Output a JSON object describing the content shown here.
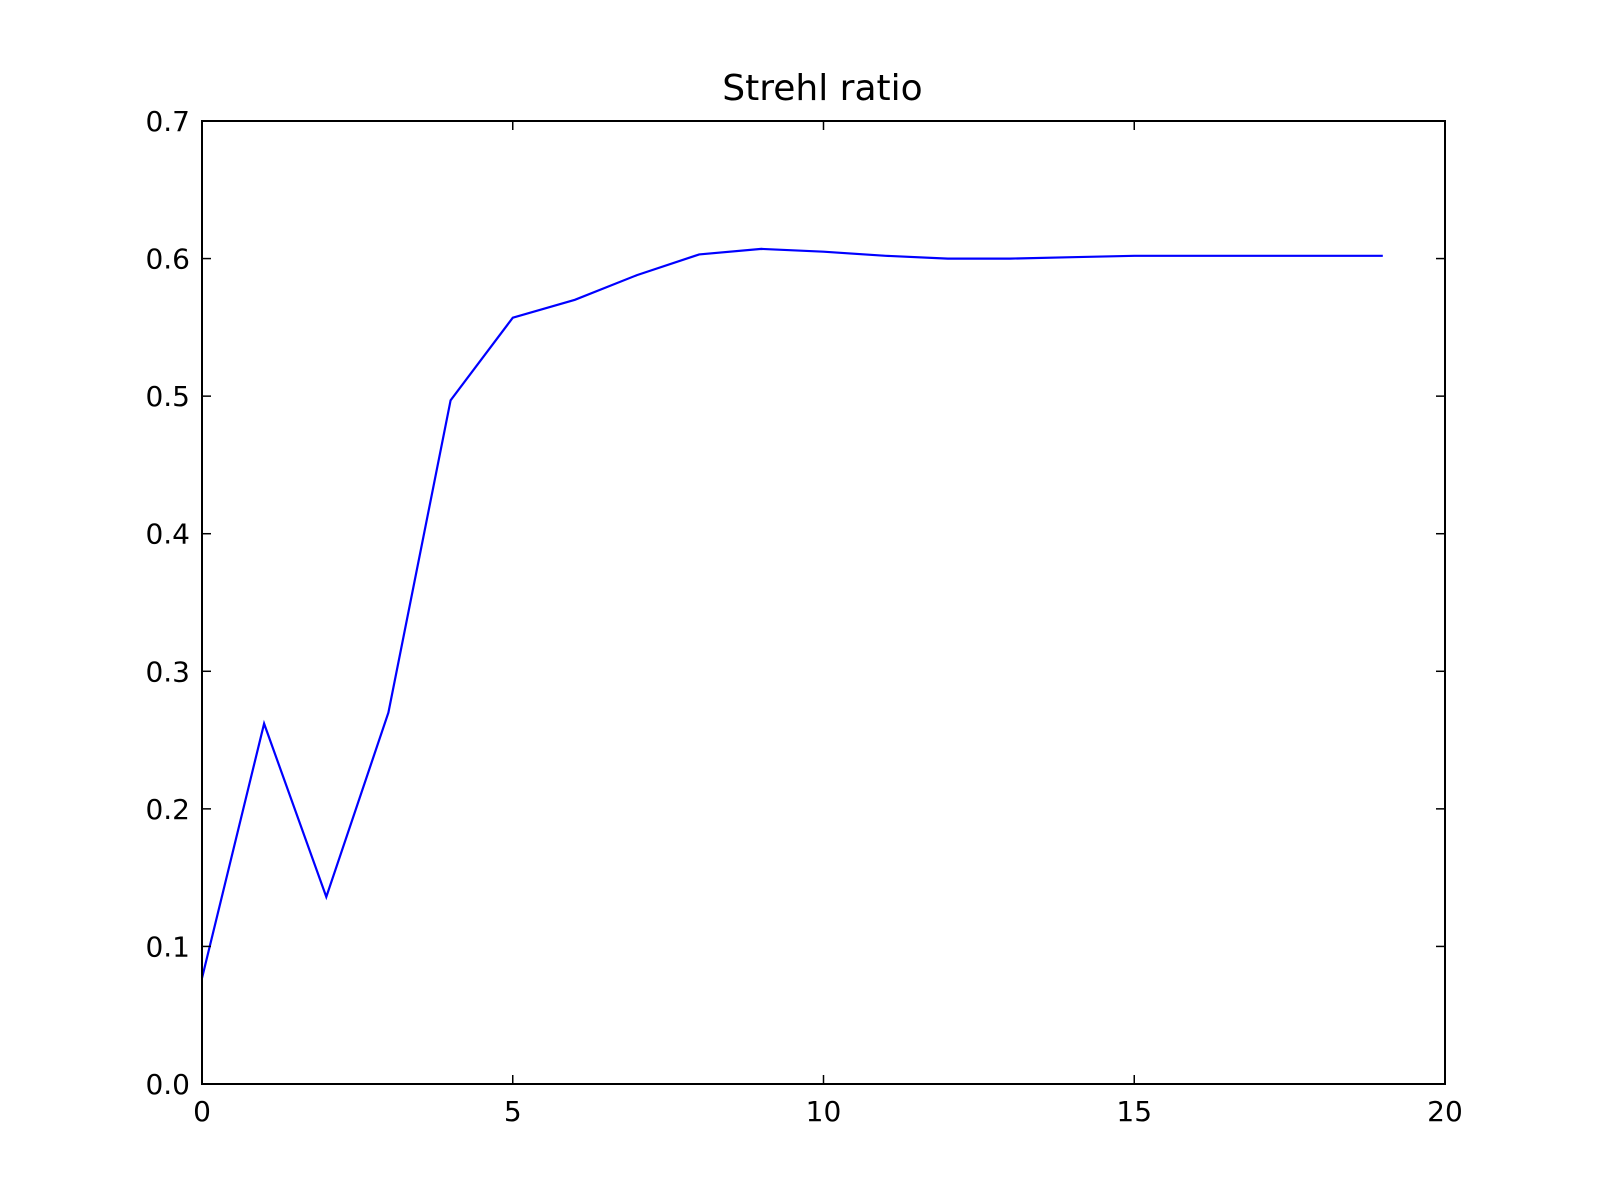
{
  "chart_data": {
    "type": "line",
    "title": "Strehl ratio",
    "xlabel": "",
    "ylabel": "",
    "xlim": [
      0,
      20
    ],
    "ylim": [
      0,
      0.7
    ],
    "xticks": [
      "0",
      "5",
      "10",
      "15",
      "20"
    ],
    "yticks": [
      "0.0",
      "0.1",
      "0.2",
      "0.3",
      "0.4",
      "0.5",
      "0.6",
      "0.7"
    ],
    "grid": false,
    "series": [
      {
        "color": "#0000ff",
        "x": [
          0,
          1,
          2,
          3,
          4,
          5,
          6,
          7,
          8,
          9,
          10,
          11,
          12,
          13,
          14,
          15,
          16,
          17,
          18,
          19
        ],
        "y": [
          0.077,
          0.262,
          0.136,
          0.27,
          0.497,
          0.557,
          0.57,
          0.588,
          0.603,
          0.607,
          0.605,
          0.602,
          0.6,
          0.6,
          0.601,
          0.602,
          0.602,
          0.602,
          0.602,
          0.602
        ]
      }
    ]
  }
}
